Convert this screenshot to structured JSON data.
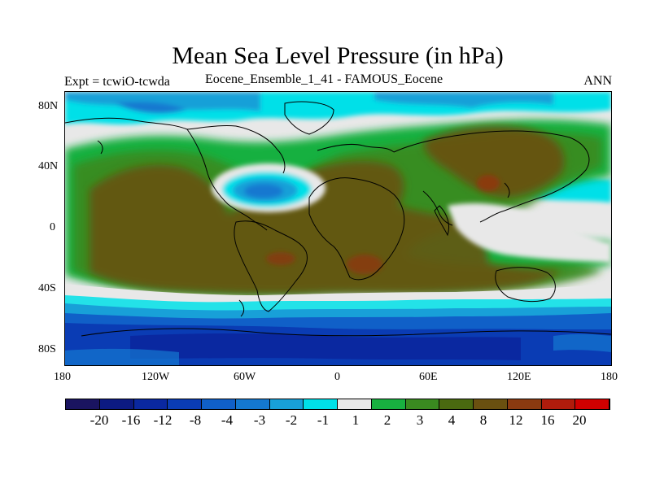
{
  "title": "Mean Sea Level Pressure (in hPa)",
  "left_subtitle": "Expt = tcwiO-tcwda",
  "center_subtitle": "Eocene_Ensemble_1_41 - FAMOUS_Eocene",
  "right_subtitle": "ANN",
  "lat_ticks": [
    "80N",
    "40N",
    "0",
    "40S",
    "80S"
  ],
  "lon_ticks": [
    "180",
    "120W",
    "60W",
    "0",
    "60E",
    "120E",
    "180"
  ],
  "colorbar": {
    "labels": [
      "-20",
      "-16",
      "-12",
      "-8",
      "-4",
      "-3",
      "-2",
      "-1",
      "1",
      "2",
      "3",
      "4",
      "8",
      "12",
      "16",
      "20"
    ],
    "colors": [
      "#1a1460",
      "#0c1a82",
      "#0a28a0",
      "#0a3cb4",
      "#1060c8",
      "#1478d0",
      "#18a0d8",
      "#00e0e8",
      "#e8e8e8",
      "#18b040",
      "#3a8a20",
      "#4a6a10",
      "#6a5010",
      "#8a3a10",
      "#b01c0c",
      "#d00000"
    ]
  }
}
